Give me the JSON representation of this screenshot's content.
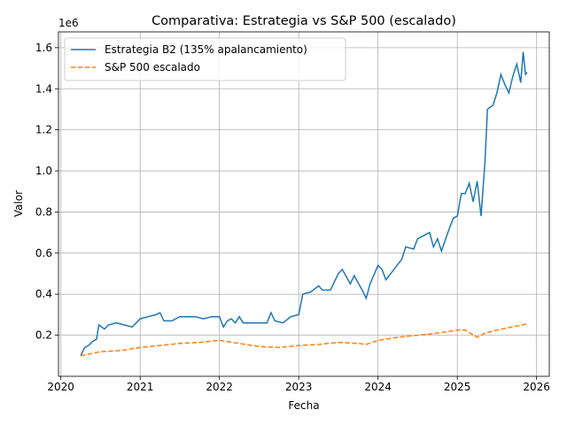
{
  "chart_data": {
    "type": "line",
    "title": "Comparativa: Estrategia vs S&P 500 (escalado)",
    "xlabel": "Fecha",
    "ylabel": "Valor",
    "y_offset_label": "1e6",
    "xlim": [
      2019.97,
      2026.16
    ],
    "xticks": [
      2020,
      2021,
      2022,
      2023,
      2024,
      2025,
      2026
    ],
    "ylim": [
      0.0,
      1.677
    ],
    "yticks": [
      0.2,
      0.4,
      0.6,
      0.8,
      {
        "value": 1,
        "label": "1.0"
      },
      1.2,
      1.4,
      1.6
    ],
    "grid": true,
    "legend": "upper left",
    "series": [
      {
        "name": "Estrategia B2 (135% apalancamiento)",
        "color": "#1f77b4",
        "dash": "solid",
        "x": [
          2020.25,
          2020.3,
          2020.35,
          2020.4,
          2020.45,
          2020.48,
          2020.55,
          2020.6,
          2020.7,
          2020.8,
          2020.9,
          2021.0,
          2021.1,
          2021.2,
          2021.25,
          2021.3,
          2021.4,
          2021.5,
          2021.6,
          2021.7,
          2021.8,
          2021.9,
          2022.0,
          2022.05,
          2022.1,
          2022.15,
          2022.2,
          2022.25,
          2022.3,
          2022.5,
          2022.6,
          2022.65,
          2022.7,
          2022.8,
          2022.9,
          2023.0,
          2023.05,
          2023.15,
          2023.25,
          2023.3,
          2023.4,
          2023.5,
          2023.55,
          2023.65,
          2023.7,
          2023.8,
          2023.85,
          2023.9,
          2024.0,
          2024.05,
          2024.1,
          2024.2,
          2024.3,
          2024.35,
          2024.45,
          2024.5,
          2024.6,
          2024.65,
          2024.7,
          2024.75,
          2024.8,
          2024.9,
          2024.95,
          2025.0,
          2025.05,
          2025.1,
          2025.15,
          2025.2,
          2025.25,
          2025.3,
          2025.35,
          2025.38,
          2025.45,
          2025.5,
          2025.55,
          2025.6,
          2025.65,
          2025.7,
          2025.75,
          2025.8,
          2025.83,
          2025.86,
          2025.88
        ],
        "values": [
          0.1,
          0.14,
          0.15,
          0.17,
          0.18,
          0.25,
          0.23,
          0.25,
          0.26,
          0.25,
          0.24,
          0.28,
          0.29,
          0.3,
          0.31,
          0.27,
          0.27,
          0.29,
          0.29,
          0.29,
          0.28,
          0.29,
          0.29,
          0.24,
          0.27,
          0.28,
          0.26,
          0.29,
          0.26,
          0.26,
          0.26,
          0.31,
          0.27,
          0.26,
          0.29,
          0.3,
          0.4,
          0.41,
          0.44,
          0.42,
          0.42,
          0.5,
          0.52,
          0.45,
          0.49,
          0.42,
          0.38,
          0.45,
          0.54,
          0.52,
          0.47,
          0.52,
          0.57,
          0.63,
          0.62,
          0.67,
          0.69,
          0.7,
          0.63,
          0.67,
          0.61,
          0.72,
          0.77,
          0.78,
          0.89,
          0.89,
          0.94,
          0.85,
          0.95,
          0.78,
          1.05,
          1.3,
          1.32,
          1.38,
          1.47,
          1.42,
          1.38,
          1.46,
          1.52,
          1.43,
          1.58,
          1.47,
          1.48
        ]
      },
      {
        "name": "S&P 500 escalado",
        "color": "#ff7f0e",
        "dash": "dashed",
        "x": [
          2020.25,
          2020.5,
          2020.75,
          2021.0,
          2021.25,
          2021.5,
          2021.75,
          2022.0,
          2022.25,
          2022.5,
          2022.75,
          2023.0,
          2023.25,
          2023.5,
          2023.75,
          2023.85,
          2024.0,
          2024.25,
          2024.5,
          2024.75,
          2025.0,
          2025.1,
          2025.25,
          2025.35,
          2025.5,
          2025.75,
          2025.88
        ],
        "values": [
          0.1,
          0.12,
          0.125,
          0.14,
          0.15,
          0.16,
          0.165,
          0.175,
          0.16,
          0.145,
          0.14,
          0.15,
          0.155,
          0.165,
          0.16,
          0.155,
          0.175,
          0.19,
          0.2,
          0.21,
          0.225,
          0.225,
          0.19,
          0.21,
          0.225,
          0.245,
          0.255
        ]
      }
    ]
  }
}
